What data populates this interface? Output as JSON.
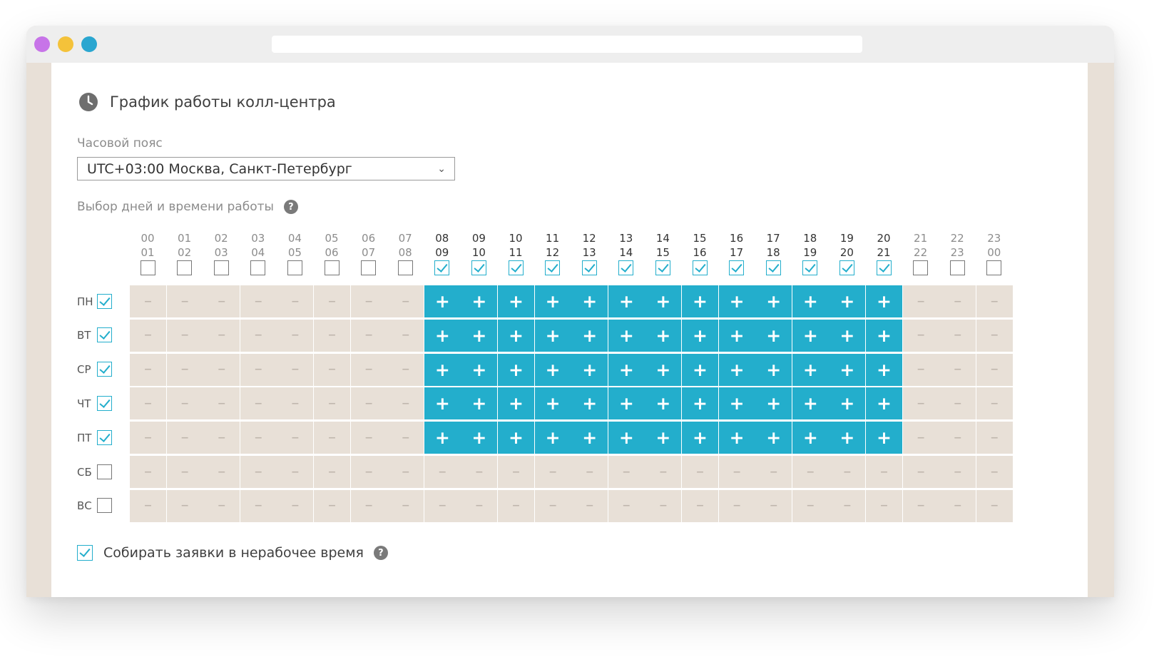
{
  "window": {
    "dots": [
      {
        "name": "close",
        "color": "#c774e8"
      },
      {
        "name": "minimize",
        "color": "#f4c23a"
      },
      {
        "name": "maximize",
        "color": "#2aa6d0"
      }
    ]
  },
  "page": {
    "title": "График работы колл-центра",
    "timezone_label": "Часовой пояс",
    "timezone_value": "UTC+03:00 Москва, Санкт-Петербург",
    "days_label": "Выбор дней и времени работы",
    "help_glyph": "?",
    "collect_label": "Собирать заявки в нерабочее время",
    "collect_checked": true
  },
  "schedule": {
    "accent": "#23aecc",
    "hours": [
      {
        "from": "00",
        "to": "01",
        "checked": false
      },
      {
        "from": "01",
        "to": "02",
        "checked": false
      },
      {
        "from": "02",
        "to": "03",
        "checked": false
      },
      {
        "from": "03",
        "to": "04",
        "checked": false
      },
      {
        "from": "04",
        "to": "05",
        "checked": false
      },
      {
        "from": "05",
        "to": "06",
        "checked": false
      },
      {
        "from": "06",
        "to": "07",
        "checked": false
      },
      {
        "from": "07",
        "to": "08",
        "checked": false
      },
      {
        "from": "08",
        "to": "09",
        "checked": true
      },
      {
        "from": "09",
        "to": "10",
        "checked": true
      },
      {
        "from": "10",
        "to": "11",
        "checked": true
      },
      {
        "from": "11",
        "to": "12",
        "checked": true
      },
      {
        "from": "12",
        "to": "13",
        "checked": true
      },
      {
        "from": "13",
        "to": "14",
        "checked": true
      },
      {
        "from": "14",
        "to": "15",
        "checked": true
      },
      {
        "from": "15",
        "to": "16",
        "checked": true
      },
      {
        "from": "16",
        "to": "17",
        "checked": true
      },
      {
        "from": "17",
        "to": "18",
        "checked": true
      },
      {
        "from": "18",
        "to": "19",
        "checked": true
      },
      {
        "from": "19",
        "to": "20",
        "checked": true
      },
      {
        "from": "20",
        "to": "21",
        "checked": true
      },
      {
        "from": "21",
        "to": "22",
        "checked": false
      },
      {
        "from": "22",
        "to": "23",
        "checked": false
      },
      {
        "from": "23",
        "to": "00",
        "checked": false
      }
    ],
    "days": [
      {
        "label": "ПН",
        "checked": true
      },
      {
        "label": "ВТ",
        "checked": true
      },
      {
        "label": "СР",
        "checked": true
      },
      {
        "label": "ЧТ",
        "checked": true
      },
      {
        "label": "ПТ",
        "checked": true
      },
      {
        "label": "СБ",
        "checked": false
      },
      {
        "label": "ВС",
        "checked": false
      }
    ],
    "on_symbol": "+",
    "off_symbol": "–"
  }
}
